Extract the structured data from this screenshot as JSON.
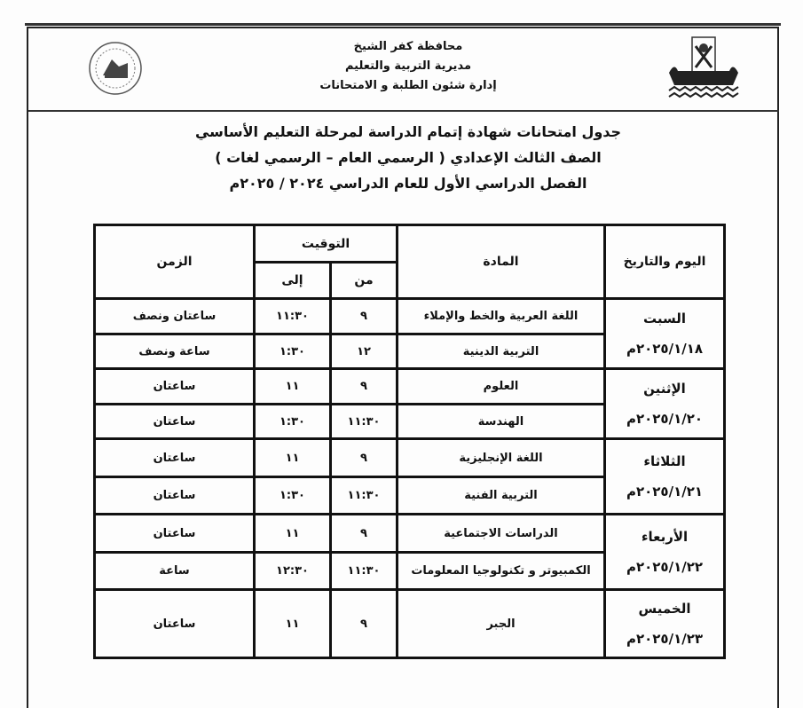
{
  "header": {
    "org_lines": [
      "محافظة كفر الشيخ",
      "مديرية التربية والتعليم",
      "إدارة شئون الطلبة و الامتحانات"
    ],
    "title_lines": [
      "جدول امتحانات شهادة إتمام الدراسة لمرحلة التعليم الأساسي",
      "الصف الثالث الإعدادي ( الرسمي العام – الرسمي لغات )",
      "الفصل الدراسي الأول للعام الدراسي ٢٠٢٤ / ٢٠٢٥م"
    ],
    "logos": [
      "education-seal-logo",
      "kafr-el-sheikh-boat-logo"
    ]
  },
  "table": {
    "headers": {
      "day_date": "اليوم والتاريخ",
      "subject": "المادة",
      "timing": "التوقيت",
      "from": "من",
      "to": "إلى",
      "duration": "الزمن"
    },
    "days": [
      {
        "day": "السبت",
        "date": "٢٠٢٥/١/١٨م",
        "exams": [
          {
            "subject": "اللغة العربية والخط والإملاء",
            "from": "٩",
            "to": "١١:٣٠",
            "duration": "ساعتان ونصف"
          },
          {
            "subject": "التربية الدينية",
            "from": "١٢",
            "to": "١:٣٠",
            "duration": "ساعة ونصف"
          }
        ]
      },
      {
        "day": "الإثنين",
        "date": "٢٠٢٥/١/٢٠م",
        "exams": [
          {
            "subject": "العلوم",
            "from": "٩",
            "to": "١١",
            "duration": "ساعتان"
          },
          {
            "subject": "الهندسة",
            "from": "١١:٣٠",
            "to": "١:٣٠",
            "duration": "ساعتان"
          }
        ]
      },
      {
        "day": "الثلاثاء",
        "date": "٢٠٢٥/١/٢١م",
        "exams": [
          {
            "subject": "اللغة الإنجليزية",
            "from": "٩",
            "to": "١١",
            "duration": "ساعتان"
          },
          {
            "subject": "التربية الفنية",
            "from": "١١:٣٠",
            "to": "١:٣٠",
            "duration": "ساعتان"
          }
        ]
      },
      {
        "day": "الأربعاء",
        "date": "٢٠٢٥/١/٢٢م",
        "exams": [
          {
            "subject": "الدراسات الاجتماعية",
            "from": "٩",
            "to": "١١",
            "duration": "ساعتان"
          },
          {
            "subject": "الكمبيوتر و تكنولوجيا المعلومات",
            "from": "١١:٣٠",
            "to": "١٢:٣٠",
            "duration": "ساعة"
          }
        ]
      },
      {
        "day": "الخميس",
        "date": "٢٠٢٥/١/٢٣م",
        "exams": [
          {
            "subject": "الجبر",
            "from": "٩",
            "to": "١١",
            "duration": "ساعتان"
          }
        ]
      }
    ]
  }
}
